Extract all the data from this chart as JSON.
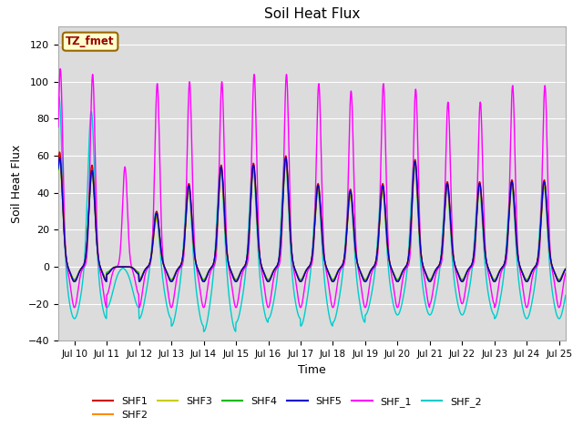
{
  "title": "Soil Heat Flux",
  "xlabel": "Time",
  "ylabel": "Soil Heat Flux",
  "xlim": [
    9.5,
    25.2
  ],
  "ylim": [
    -40,
    130
  ],
  "yticks": [
    -40,
    -20,
    0,
    20,
    40,
    60,
    80,
    100,
    120
  ],
  "xtick_start": 10,
  "xtick_end": 25,
  "background_color": "#dcdcdc",
  "fig_color": "#ffffff",
  "series_colors": {
    "SHF1": "#cc0000",
    "SHF2": "#ff8c00",
    "SHF3": "#cccc00",
    "SHF4": "#00bb00",
    "SHF5": "#0000cc",
    "SHF_1": "#ff00ff",
    "SHF_2": "#00cccc"
  },
  "tz_label": "TZ_fmet",
  "tz_bg": "#ffffcc",
  "tz_border": "#996600",
  "tz_text_color": "#990000",
  "grid_color": "#ffffff",
  "linewidth": 1.0,
  "shf1_peaks": [
    62,
    55,
    0,
    30,
    45,
    55,
    56,
    60,
    45,
    42,
    45,
    58,
    46,
    46,
    47,
    47
  ],
  "shf1_troughs": [
    -8,
    -8,
    -4,
    -8,
    -8,
    -8,
    -8,
    -8,
    -8,
    -8,
    -8,
    -8,
    -8,
    -8,
    -8,
    -8
  ],
  "shf2_peaks": [
    60,
    53,
    0,
    28,
    43,
    53,
    54,
    58,
    43,
    40,
    43,
    56,
    44,
    44,
    45,
    45
  ],
  "shf2_troughs": [
    -8,
    -8,
    -4,
    -8,
    -8,
    -8,
    -8,
    -8,
    -8,
    -8,
    -8,
    -8,
    -8,
    -8,
    -8,
    -8
  ],
  "shf3_peaks": [
    57,
    50,
    0,
    26,
    41,
    51,
    52,
    56,
    41,
    38,
    41,
    54,
    42,
    42,
    43,
    43
  ],
  "shf3_troughs": [
    -7,
    -7,
    -3,
    -7,
    -7,
    -7,
    -7,
    -7,
    -7,
    -7,
    -7,
    -7,
    -7,
    -7,
    -7,
    -7
  ],
  "shf4_peaks": [
    58,
    51,
    0,
    27,
    42,
    52,
    53,
    57,
    42,
    39,
    42,
    55,
    43,
    43,
    44,
    44
  ],
  "shf4_troughs": [
    -7,
    -7,
    -3,
    -7,
    -7,
    -7,
    -7,
    -7,
    -7,
    -7,
    -7,
    -7,
    -7,
    -7,
    -7,
    -7
  ],
  "shf5_peaks": [
    59,
    52,
    0,
    29,
    44,
    54,
    55,
    59,
    44,
    41,
    44,
    57,
    45,
    45,
    46,
    46
  ],
  "shf5_troughs": [
    -8,
    -8,
    -4,
    -8,
    -8,
    -8,
    -8,
    -8,
    -8,
    -8,
    -8,
    -8,
    -8,
    -8,
    -8,
    -8
  ],
  "shf_1_peaks": [
    107,
    104,
    54,
    99,
    100,
    100,
    104,
    104,
    99,
    95,
    99,
    96,
    89,
    89,
    98,
    98
  ],
  "shf_1_troughs": [
    -22,
    -22,
    -15,
    -22,
    -22,
    -22,
    -22,
    -22,
    -22,
    -22,
    -22,
    -22,
    -20,
    -20,
    -22,
    -22
  ],
  "shf_2_peaks": [
    93,
    85,
    0,
    30,
    45,
    55,
    56,
    60,
    45,
    42,
    45,
    58,
    46,
    46,
    47,
    47
  ],
  "shf_2_troughs": [
    -28,
    -28,
    -22,
    -28,
    -32,
    -35,
    -30,
    -28,
    -32,
    -30,
    -26,
    -26,
    -26,
    -26,
    -28,
    -28
  ]
}
